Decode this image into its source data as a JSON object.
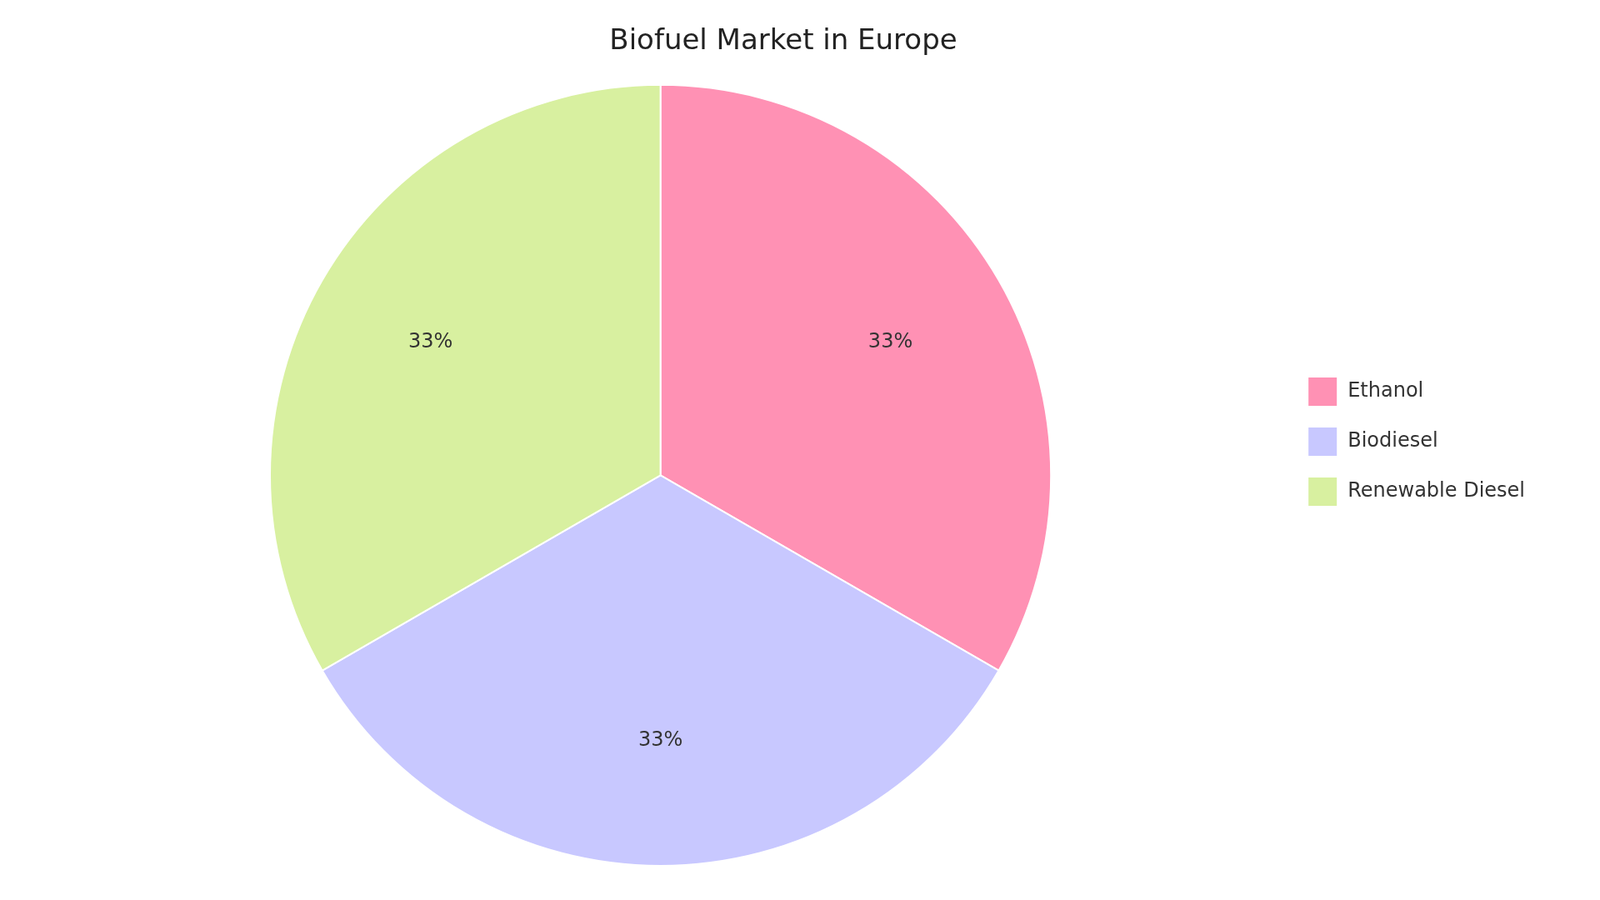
{
  "chart_data": {
    "type": "pie",
    "title": "Biofuel Market in Europe",
    "categories": [
      "Ethanol",
      "Biodiesel",
      "Renewable Diesel"
    ],
    "values": [
      33,
      33,
      33
    ],
    "value_labels": [
      "33%",
      "33%",
      "33%"
    ],
    "colors": [
      "#FF91B4",
      "#C8C8FF",
      "#D8F0A0"
    ],
    "data_labels": true,
    "legend": "right"
  }
}
